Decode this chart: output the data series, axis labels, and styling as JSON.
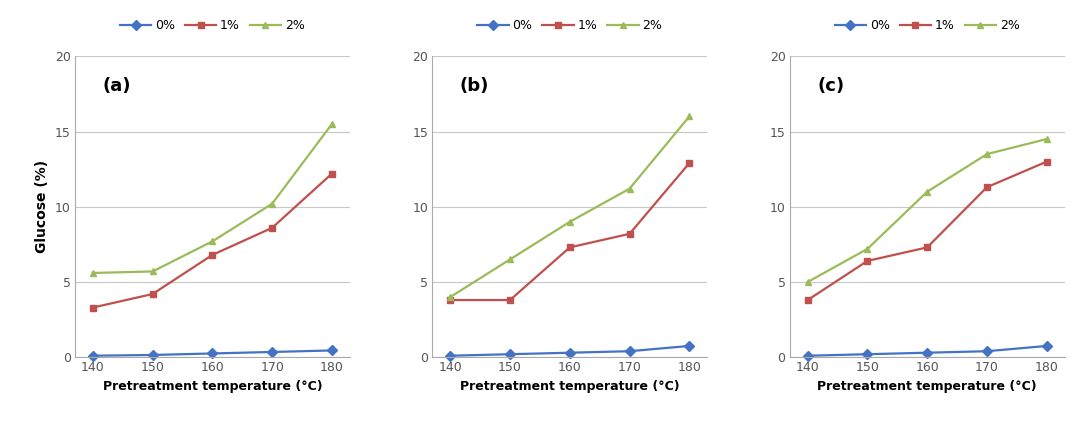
{
  "x": [
    140,
    150,
    160,
    170,
    180
  ],
  "panels": [
    {
      "label": "(a)",
      "series": {
        "0%": [
          0.1,
          0.15,
          0.25,
          0.35,
          0.45
        ],
        "1%": [
          3.3,
          4.2,
          6.8,
          8.6,
          12.2
        ],
        "2%": [
          5.6,
          5.7,
          7.7,
          10.2,
          15.5
        ]
      }
    },
    {
      "label": "(b)",
      "series": {
        "0%": [
          0.1,
          0.2,
          0.3,
          0.4,
          0.75
        ],
        "1%": [
          3.8,
          3.8,
          7.3,
          8.2,
          12.9
        ],
        "2%": [
          4.0,
          6.5,
          9.0,
          11.2,
          16.0
        ]
      }
    },
    {
      "label": "(c)",
      "series": {
        "0%": [
          0.1,
          0.2,
          0.3,
          0.4,
          0.75
        ],
        "1%": [
          3.8,
          6.4,
          7.3,
          11.3,
          13.0
        ],
        "2%": [
          5.0,
          7.2,
          11.0,
          13.5,
          14.5
        ]
      }
    }
  ],
  "colors": {
    "0%": "#4472C4",
    "1%": "#C0504D",
    "2%": "#9BBB59"
  },
  "markers": {
    "0%": "D",
    "1%": "s",
    "2%": "^"
  },
  "markersize": 5,
  "linewidth": 1.6,
  "ylim": [
    0,
    20
  ],
  "yticks": [
    0,
    5,
    10,
    15,
    20
  ],
  "xlabel": "Pretreatment temperature (°C)",
  "ylabel": "Glucose (%)",
  "legend_labels": [
    "0%",
    "1%",
    "2%"
  ],
  "bg_color": "#ffffff",
  "grid_color": "#c8c8c8",
  "tick_color": "#555555",
  "xlabel_color": "#000000",
  "panel_label_fontsize": 13,
  "axis_fontsize": 9,
  "xlabel_fontsize": 9,
  "ylabel_fontsize": 10,
  "legend_fontsize": 9
}
